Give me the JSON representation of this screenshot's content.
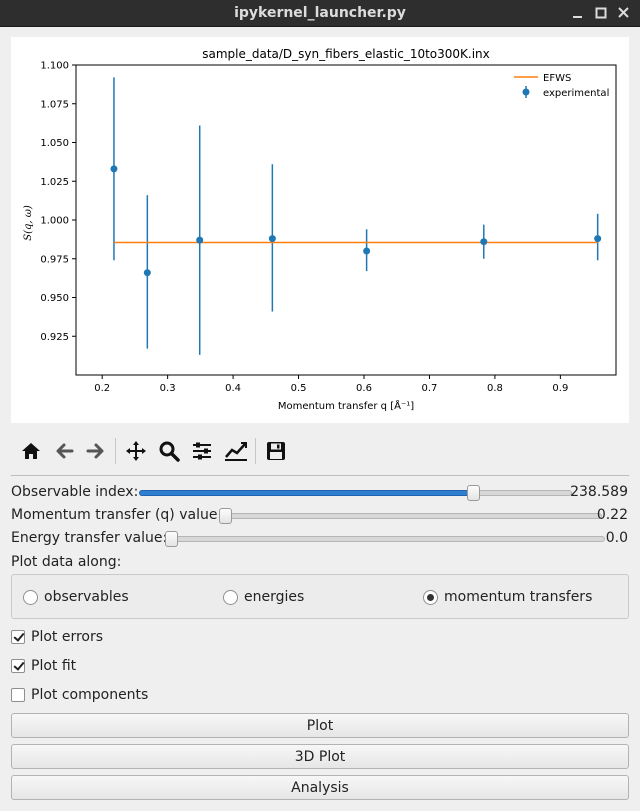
{
  "window": {
    "title": "ipykernel_launcher.py"
  },
  "figure": {
    "title": "sample_data/D_syn_fibers_elastic_10to300K.inx",
    "xlabel": "Momentum transfer q [Å⁻¹]",
    "ylabel": "S(q, ω)",
    "legend": [
      {
        "label": "EFWS",
        "color": "#ff7f0e"
      },
      {
        "label": "experimental",
        "color": "#1f77b4"
      }
    ]
  },
  "chart_data": {
    "type": "scatter",
    "title": "sample_data/D_syn_fibers_elastic_10to300K.inx",
    "xlabel": "Momentum transfer q [Å⁻¹]",
    "ylabel": "S(q, ω)",
    "xlim": [
      0.16,
      0.985
    ],
    "ylim": [
      0.9,
      1.1
    ],
    "xticks": [
      0.2,
      0.3,
      0.4,
      0.5,
      0.6,
      0.7,
      0.8,
      0.9
    ],
    "xtick_labels": [
      "0.2",
      "0.3",
      "0.4",
      "0.5",
      "0.6",
      "0.7",
      "0.8",
      "0.9"
    ],
    "yticks": [
      0.925,
      0.95,
      0.975,
      1.0,
      1.025,
      1.05,
      1.075,
      1.1
    ],
    "ytick_labels": [
      "0.925",
      "0.950",
      "0.975",
      "1.000",
      "1.025",
      "1.050",
      "1.075",
      "1.100"
    ],
    "grid": false,
    "legend_position": "top-right",
    "series": [
      {
        "name": "experimental",
        "kind": "errorbar",
        "color": "#1f77b4",
        "x": [
          0.218,
          0.269,
          0.349,
          0.46,
          0.604,
          0.783,
          0.957
        ],
        "y": [
          1.033,
          0.966,
          0.987,
          0.988,
          0.98,
          0.986,
          0.988
        ],
        "yerr_low": [
          0.974,
          0.917,
          0.913,
          0.941,
          0.967,
          0.975,
          0.974
        ],
        "yerr_high": [
          1.092,
          1.016,
          1.061,
          1.036,
          0.994,
          0.997,
          1.004
        ]
      },
      {
        "name": "EFWS",
        "kind": "line",
        "color": "#ff7f0e",
        "x": [
          0.218,
          0.957
        ],
        "y": [
          0.9855,
          0.9855
        ]
      }
    ]
  },
  "toolbar": {
    "items": [
      "home-icon",
      "back-arrow-icon",
      "forward-arrow-icon",
      "pan-icon",
      "zoom-icon",
      "configure-subplots-icon",
      "edit-axis-icon",
      "save-icon"
    ]
  },
  "controls": {
    "observable_label": "Observable index:",
    "observable_value": "238.589",
    "observable_fraction": 0.78,
    "q_label": "Momentum transfer (q) value:",
    "q_value": "0.22",
    "q_fraction": 0.0,
    "energy_label": "Energy transfer value:",
    "energy_value": "0.0",
    "energy_fraction": 0.0,
    "plot_along_label": "Plot data along:",
    "radio_observables": "observables",
    "radio_energies": "energies",
    "radio_momentum": "momentum transfers",
    "selected_radio": "momentum transfers",
    "check_errors": "Plot errors",
    "check_errors_on": true,
    "check_fit": "Plot fit",
    "check_fit_on": true,
    "check_components": "Plot components",
    "check_components_on": false
  },
  "buttons": {
    "plot": "Plot",
    "plot3d": "3D Plot",
    "analysis": "Analysis"
  }
}
